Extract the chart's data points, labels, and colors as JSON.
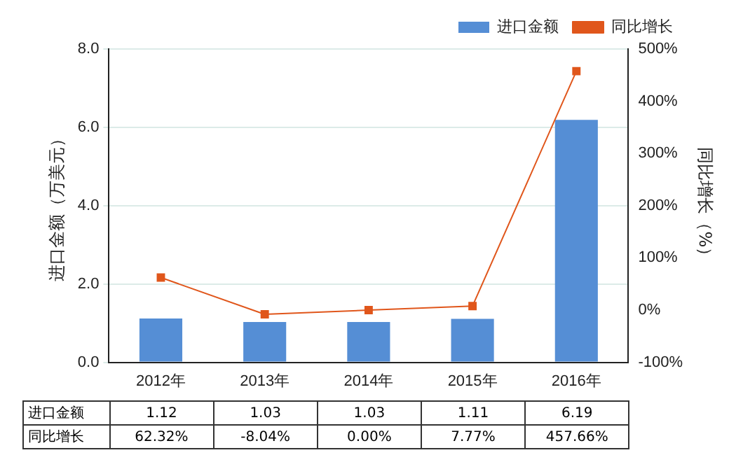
{
  "chart_data": {
    "type": "bar",
    "categories": [
      "2012年",
      "2013年",
      "2014年",
      "2015年",
      "2016年"
    ],
    "series": [
      {
        "name": "进口金额",
        "color": "#558ed5",
        "values": [
          1.12,
          1.03,
          1.03,
          1.11,
          6.19
        ],
        "value_labels": [
          "1.12",
          "1.03",
          "1.03",
          "1.11",
          "6.19"
        ]
      },
      {
        "name": "同比增长",
        "type": "line",
        "axis": "y2",
        "color": "#e0561b",
        "values": [
          62.32,
          -8.04,
          0.0,
          7.77,
          457.66
        ],
        "value_labels": [
          "62.32%",
          "-8.04%",
          "0.00%",
          "7.77%",
          "457.66%"
        ]
      }
    ],
    "ylabel": "进口金额（万美元）",
    "y2label": "同比增长（%）",
    "ylim": [
      0,
      8
    ],
    "yticks": [
      {
        "value": 0,
        "label": "0.0"
      },
      {
        "value": 2,
        "label": "2.0"
      },
      {
        "value": 4,
        "label": "4.0"
      },
      {
        "value": 6,
        "label": "6.0"
      },
      {
        "value": 8,
        "label": "8.0"
      }
    ],
    "y2lim": [
      -100,
      500
    ],
    "y2ticks": [
      {
        "value": -100,
        "label": "-100%"
      },
      {
        "value": 0,
        "label": "0%"
      },
      {
        "value": 100,
        "label": "100%"
      },
      {
        "value": 200,
        "label": "200%"
      },
      {
        "value": 300,
        "label": "300%"
      },
      {
        "value": 400,
        "label": "400%"
      },
      {
        "value": 500,
        "label": "500%"
      }
    ],
    "grid": "y",
    "legend": "top right",
    "marker": "square",
    "line_style": "solid"
  }
}
